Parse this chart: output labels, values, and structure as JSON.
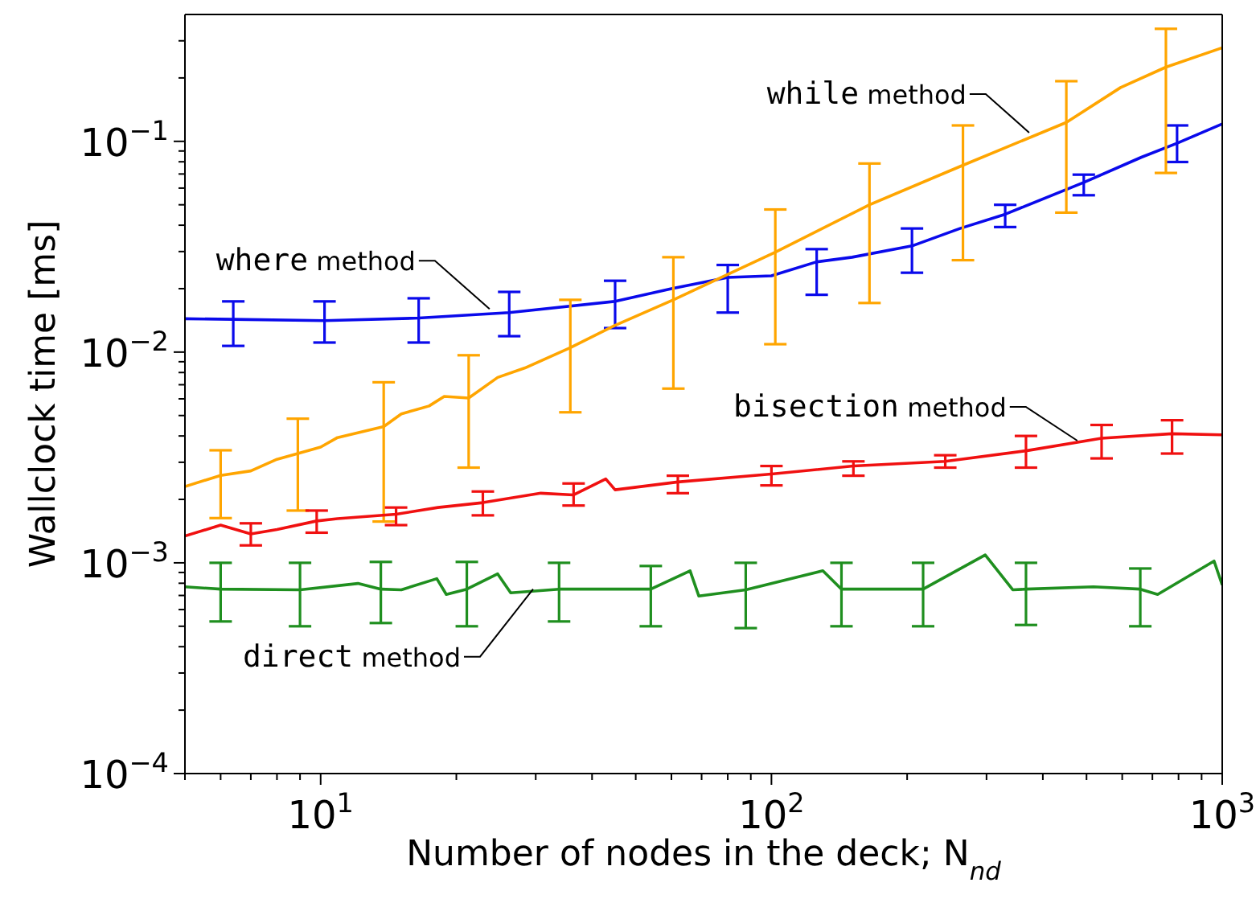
{
  "chart_data": {
    "type": "line",
    "xlabel": "Number of nodes in the deck; N$_{nd}$",
    "ylabel": "Wallclock time [ms]",
    "log": "xy",
    "xlim": [
      5,
      1000
    ],
    "ylim": [
      0.0001,
      0.4
    ],
    "xticks": [
      {
        "value": 5,
        "label": null
      },
      {
        "value": 6,
        "label": null
      },
      {
        "value": 7,
        "label": null
      },
      {
        "value": 8,
        "label": null
      },
      {
        "value": 9,
        "label": null
      },
      {
        "value": 10,
        "label": "10$^{1}$"
      },
      {
        "value": 20,
        "label": null
      },
      {
        "value": 30,
        "label": null
      },
      {
        "value": 40,
        "label": null
      },
      {
        "value": 50,
        "label": null
      },
      {
        "value": 60,
        "label": null
      },
      {
        "value": 70,
        "label": null
      },
      {
        "value": 80,
        "label": null
      },
      {
        "value": 90,
        "label": null
      },
      {
        "value": 100,
        "label": "10$^{2}$"
      },
      {
        "value": 200,
        "label": null
      },
      {
        "value": 300,
        "label": null
      },
      {
        "value": 400,
        "label": null
      },
      {
        "value": 500,
        "label": null
      },
      {
        "value": 600,
        "label": null
      },
      {
        "value": 700,
        "label": null
      },
      {
        "value": 800,
        "label": null
      },
      {
        "value": 900,
        "label": null
      },
      {
        "value": 1000,
        "label": "10$^{3}$"
      }
    ],
    "yticks": [
      {
        "value": 0.0001,
        "label": "10$^{−4}$"
      },
      {
        "value": 0.0002,
        "label": null
      },
      {
        "value": 0.0003,
        "label": null
      },
      {
        "value": 0.0004,
        "label": null
      },
      {
        "value": 0.0005,
        "label": null
      },
      {
        "value": 0.0006,
        "label": null
      },
      {
        "value": 0.0007,
        "label": null
      },
      {
        "value": 0.0008,
        "label": null
      },
      {
        "value": 0.0009,
        "label": null
      },
      {
        "value": 0.001,
        "label": "10$^{−3}$"
      },
      {
        "value": 0.002,
        "label": null
      },
      {
        "value": 0.003,
        "label": null
      },
      {
        "value": 0.004,
        "label": null
      },
      {
        "value": 0.005,
        "label": null
      },
      {
        "value": 0.006,
        "label": null
      },
      {
        "value": 0.007,
        "label": null
      },
      {
        "value": 0.008,
        "label": null
      },
      {
        "value": 0.009,
        "label": null
      },
      {
        "value": 0.01,
        "label": "10$^{−2}$"
      },
      {
        "value": 0.02,
        "label": null
      },
      {
        "value": 0.03,
        "label": null
      },
      {
        "value": 0.04,
        "label": null
      },
      {
        "value": 0.05,
        "label": null
      },
      {
        "value": 0.06,
        "label": null
      },
      {
        "value": 0.07,
        "label": null
      },
      {
        "value": 0.08,
        "label": null
      },
      {
        "value": 0.09,
        "label": null
      },
      {
        "value": 0.1,
        "label": "10$^{−1}$"
      },
      {
        "value": 0.2,
        "label": null
      },
      {
        "value": 0.3,
        "label": null
      }
    ],
    "grid": false,
    "marker": "none",
    "line_style": "solid",
    "annotations": [
      {
        "text": "while method",
        "x": 373,
        "y": 0.11
      },
      {
        "text": "where method",
        "x": 23.7,
        "y": 0.016
      },
      {
        "text": "bisection method",
        "x": 477,
        "y": 0.0038
      },
      {
        "text": "direct method",
        "x": 29.6,
        "y": 0.00075
      }
    ],
    "series": [
      {
        "color": "#0a0aeb",
        "x": [
          5,
          6.4,
          10.2,
          16.5,
          26.2,
          45,
          60,
          80,
          100,
          126,
          151,
          205,
          262,
          330,
          493,
          662,
          794,
          1000
        ],
        "values": [
          0.0144,
          0.0143,
          0.0141,
          0.0145,
          0.0154,
          0.0174,
          0.02,
          0.0226,
          0.023,
          0.0268,
          0.0282,
          0.0319,
          0.0386,
          0.0451,
          0.0638,
          0.0841,
          0.098,
          0.121
        ],
        "errors": [
          null,
          [
            0.0107,
            0.0174
          ],
          [
            0.0111,
            0.0174
          ],
          [
            0.0111,
            0.018
          ],
          [
            0.0119,
            0.0193
          ],
          [
            0.013,
            0.0218
          ],
          null,
          [
            0.0154,
            0.0259
          ],
          null,
          [
            0.0187,
            0.0308
          ],
          null,
          [
            0.0238,
            0.0386
          ],
          null,
          [
            0.0392,
            0.05
          ],
          [
            0.0555,
            0.0695
          ],
          null,
          [
            0.0798,
            0.119
          ],
          null
        ]
      },
      {
        "color": "#ffa500",
        "x": [
          5,
          6,
          7,
          8,
          8.9,
          10,
          10.9,
          13.8,
          15.1,
          17.4,
          18.8,
          21.3,
          24.7,
          28.4,
          35.8,
          45,
          60.6,
          70.8,
          102,
          165,
          266,
          451,
          595,
          750,
          1000
        ],
        "values": [
          0.0023,
          0.0026,
          0.00273,
          0.0031,
          0.0033,
          0.00354,
          0.00393,
          0.00443,
          0.00509,
          0.00555,
          0.00616,
          0.00605,
          0.00758,
          0.00841,
          0.0105,
          0.0134,
          0.0177,
          0.0207,
          0.0298,
          0.05,
          0.077,
          0.123,
          0.18,
          0.225,
          0.278
        ],
        "errors": [
          null,
          [
            0.00163,
            0.00342
          ],
          null,
          null,
          [
            0.00177,
            0.00483
          ],
          null,
          null,
          [
            0.00157,
            0.00719
          ],
          null,
          null,
          null,
          [
            0.00283,
            0.00966
          ],
          null,
          null,
          [
            0.00518,
            0.0177
          ],
          null,
          [
            0.00671,
            0.0282
          ],
          null,
          [
            0.0109,
            0.0475
          ],
          [
            0.0171,
            0.0785
          ],
          [
            0.0273,
            0.119
          ],
          [
            0.0459,
            0.193
          ],
          null,
          [
            0.0708,
            0.342
          ],
          null
        ]
      },
      {
        "color": "#f01010",
        "x": [
          5,
          6,
          7,
          8,
          9.8,
          10.9,
          14.7,
          18.2,
          22.9,
          30.8,
          36.4,
          42.9,
          45,
          62,
          100,
          152,
          243,
          367,
          540,
          774,
          1000
        ],
        "values": [
          0.00134,
          0.00151,
          0.00137,
          0.00144,
          0.00158,
          0.00162,
          0.0017,
          0.00183,
          0.00193,
          0.00214,
          0.0021,
          0.0025,
          0.00222,
          0.00242,
          0.00264,
          0.00288,
          0.00303,
          0.0034,
          0.0039,
          0.0041,
          0.00405
        ],
        "errors": [
          null,
          null,
          [
            0.00121,
            0.00154
          ],
          null,
          [
            0.00139,
            0.00177
          ],
          null,
          [
            0.00151,
            0.00183
          ],
          null,
          [
            0.00168,
            0.00218
          ],
          null,
          [
            0.00187,
            0.00238
          ],
          null,
          null,
          [
            0.00214,
            0.00259
          ],
          [
            0.00233,
            0.00288
          ],
          [
            0.00259,
            0.00303
          ],
          [
            0.00283,
            0.00324
          ],
          [
            0.00283,
            0.004
          ],
          [
            0.00313,
            0.00451
          ],
          [
            0.0033,
            0.00475
          ],
          null
        ]
      },
      {
        "color": "#1f8f1f",
        "x": [
          5,
          6,
          9,
          12.1,
          13.6,
          15.1,
          18.1,
          19,
          21.1,
          24.7,
          26.4,
          33.8,
          54,
          66,
          69,
          87.7,
          130,
          143,
          217,
          298,
          343,
          367,
          518,
          658,
          719,
          959,
          1000
        ],
        "values": [
          0.00077,
          0.00075,
          0.000745,
          0.000798,
          0.00075,
          0.000745,
          0.000841,
          0.000708,
          0.00075,
          0.000886,
          0.00072,
          0.00075,
          0.00075,
          0.000917,
          0.000696,
          0.000745,
          0.000917,
          0.00075,
          0.00075,
          0.00109,
          0.000745,
          0.00075,
          0.00077,
          0.00075,
          0.000708,
          0.00102,
          0.000785
        ],
        "errors": [
          null,
          [
            0.000527,
            0.001
          ],
          [
            0.0005,
            0.001
          ],
          null,
          [
            0.000518,
            0.00101
          ],
          null,
          null,
          null,
          [
            0.0005,
            0.00101
          ],
          null,
          null,
          [
            0.000527,
            0.001
          ],
          [
            0.0005,
            0.000966
          ],
          null,
          null,
          [
            0.00049,
            0.001
          ],
          null,
          [
            0.0005,
            0.001
          ],
          [
            0.0005,
            0.001
          ],
          null,
          null,
          [
            0.000507,
            0.001
          ],
          null,
          [
            0.0005,
            0.00094
          ],
          null,
          null,
          null
        ]
      }
    ]
  }
}
